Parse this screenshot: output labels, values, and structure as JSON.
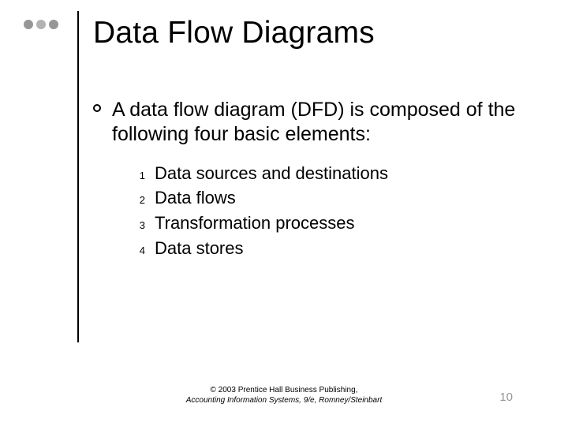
{
  "deco": {
    "dot_colors": [
      "#969696",
      "#b2b2b2",
      "#969696"
    ],
    "rule_color": "#000000"
  },
  "title": "Data Flow Diagrams",
  "bullet_text": "A data flow diagram (DFD) is composed of the following four basic elements:",
  "items": [
    {
      "n": "1",
      "text": "Data sources and destinations"
    },
    {
      "n": "2",
      "text": "Data flows"
    },
    {
      "n": "3",
      "text": "Transformation processes"
    },
    {
      "n": "4",
      "text": "Data stores"
    }
  ],
  "footer": {
    "line1": "© 2003 Prentice Hall Business Publishing,",
    "line2": "Accounting Information Systems, 9/e, Romney/Steinbart"
  },
  "page_number": "10",
  "colors": {
    "text": "#000000",
    "pagenum": "#969696",
    "background": "#ffffff"
  },
  "typography": {
    "title_fontsize": 39,
    "body_fontsize": 25,
    "list_fontsize": 22,
    "list_number_fontsize": 13,
    "footer_fontsize": 10,
    "pagenum_fontsize": 15,
    "font_family": "Arial"
  }
}
